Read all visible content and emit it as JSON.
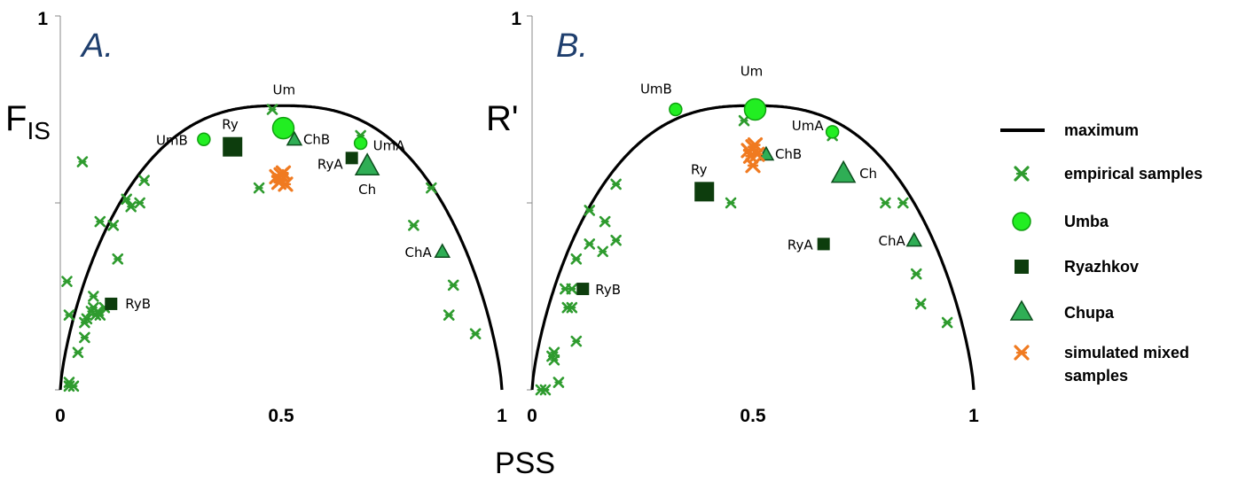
{
  "colors": {
    "empirical": "#2e9b2e",
    "umba_fill": "#22ee22",
    "umba_stroke": "#10a010",
    "ryazhkov": "#0d3d0d",
    "chupa_fill": "#2fae55",
    "chupa_stroke": "#0d4d1d",
    "simulated": "#f07a20",
    "maximum": "#000000",
    "panel_label": "#1f3f6e"
  },
  "x_axis_label": "PSS",
  "legend": {
    "maximum": "maximum",
    "empirical": "empirical samples",
    "umba": "Umba",
    "ryazhkov": "Ryazhkov",
    "chupa": "Chupa",
    "simulated": [
      "simulated mixed",
      "samples"
    ]
  },
  "chart_data": [
    {
      "type": "scatter",
      "panel_label": "A.",
      "ylabel": "F",
      "ylabel_sub": "IS",
      "xlim": [
        0,
        1
      ],
      "ylim": [
        0,
        1
      ],
      "x_ticks": [
        "0",
        "0.5",
        "1"
      ],
      "y_tick_label_top": "1",
      "curve": "maximum",
      "series": [
        {
          "key": "empirical",
          "name": "empirical samples",
          "marker": "x",
          "points": [
            [
              0.02,
              0.01
            ],
            [
              0.03,
              0.01
            ],
            [
              0.02,
              0.02
            ],
            [
              0.04,
              0.1
            ],
            [
              0.055,
              0.14
            ],
            [
              0.055,
              0.18
            ],
            [
              0.02,
              0.2
            ],
            [
              0.06,
              0.19
            ],
            [
              0.07,
              0.21
            ],
            [
              0.075,
              0.22
            ],
            [
              0.08,
              0.2
            ],
            [
              0.085,
              0.21
            ],
            [
              0.09,
              0.2
            ],
            [
              0.1,
              0.22
            ],
            [
              0.075,
              0.25
            ],
            [
              0.015,
              0.29
            ],
            [
              0.13,
              0.35
            ],
            [
              0.12,
              0.44
            ],
            [
              0.09,
              0.45
            ],
            [
              0.16,
              0.49
            ],
            [
              0.18,
              0.5
            ],
            [
              0.15,
              0.51
            ],
            [
              0.19,
              0.56
            ],
            [
              0.05,
              0.61
            ],
            [
              0.45,
              0.54
            ],
            [
              0.48,
              0.75
            ],
            [
              0.68,
              0.68
            ],
            [
              0.84,
              0.54
            ],
            [
              0.8,
              0.44
            ],
            [
              0.89,
              0.28
            ],
            [
              0.88,
              0.2
            ],
            [
              0.94,
              0.15
            ]
          ]
        },
        {
          "key": "umba",
          "name": "Umba",
          "marker": "circle",
          "points": [
            {
              "x": 0.325,
              "y": 0.67,
              "label": "UmB",
              "size": "small",
              "ldx": -18,
              "ldy": 6,
              "anchor": "end"
            },
            {
              "x": 0.505,
              "y": 0.7,
              "label": "Um",
              "size": "large",
              "ldx": -12,
              "ldy": -38,
              "anchor": "start"
            },
            {
              "x": 0.68,
              "y": 0.66,
              "label": "UmA",
              "size": "small",
              "ldx": 14,
              "ldy": 8,
              "anchor": "start"
            }
          ]
        },
        {
          "key": "ryazhkov",
          "name": "Ryazhkov",
          "marker": "square",
          "points": [
            {
              "x": 0.39,
              "y": 0.65,
              "label": "Ry",
              "size": "large",
              "ldx": -12,
              "ldy": -20,
              "anchor": "start"
            },
            {
              "x": 0.66,
              "y": 0.62,
              "label": "RyA",
              "size": "small",
              "ldx": -10,
              "ldy": 12,
              "anchor": "end"
            },
            {
              "x": 0.115,
              "y": 0.23,
              "label": "RyB",
              "size": "small",
              "ldx": 16,
              "ldy": 5,
              "anchor": "start"
            }
          ]
        },
        {
          "key": "chupa",
          "name": "Chupa",
          "marker": "triangle",
          "points": [
            {
              "x": 0.53,
              "y": 0.67,
              "label": "ChB",
              "size": "small",
              "ldx": 10,
              "ldy": 5,
              "anchor": "start"
            },
            {
              "x": 0.695,
              "y": 0.6,
              "label": "Ch",
              "size": "large",
              "ldx": -10,
              "ldy": 32,
              "anchor": "start"
            },
            {
              "x": 0.865,
              "y": 0.37,
              "label": "ChA",
              "size": "small",
              "ldx": -12,
              "ldy": 6,
              "anchor": "end"
            }
          ]
        },
        {
          "key": "simulated",
          "name": "simulated mixed samples",
          "marker": "x",
          "points": [
            [
              0.49,
              0.57
            ],
            [
              0.5,
              0.56
            ],
            [
              0.505,
              0.58
            ],
            [
              0.51,
              0.55
            ],
            [
              0.495,
              0.555
            ],
            [
              0.5,
              0.575
            ]
          ]
        }
      ]
    },
    {
      "type": "scatter",
      "panel_label": "B.",
      "ylabel": "R'",
      "ylabel_sub": "",
      "xlim": [
        0,
        1
      ],
      "ylim": [
        0,
        1
      ],
      "x_ticks": [
        "0",
        "0.5",
        "1"
      ],
      "y_tick_label_top": "1",
      "curve": "maximum",
      "series": [
        {
          "key": "empirical",
          "name": "empirical samples",
          "marker": "x",
          "points": [
            [
              0.02,
              0.0
            ],
            [
              0.03,
              0.0
            ],
            [
              0.06,
              0.02
            ],
            [
              0.05,
              0.08
            ],
            [
              0.05,
              0.1
            ],
            [
              0.045,
              0.09
            ],
            [
              0.1,
              0.13
            ],
            [
              0.08,
              0.22
            ],
            [
              0.09,
              0.22
            ],
            [
              0.09,
              0.27
            ],
            [
              0.075,
              0.27
            ],
            [
              0.1,
              0.35
            ],
            [
              0.13,
              0.39
            ],
            [
              0.16,
              0.37
            ],
            [
              0.13,
              0.48
            ],
            [
              0.165,
              0.45
            ],
            [
              0.19,
              0.4
            ],
            [
              0.19,
              0.55
            ],
            [
              0.45,
              0.5
            ],
            [
              0.48,
              0.72
            ],
            [
              0.68,
              0.68
            ],
            [
              0.8,
              0.5
            ],
            [
              0.84,
              0.5
            ],
            [
              0.87,
              0.31
            ],
            [
              0.88,
              0.23
            ],
            [
              0.94,
              0.18
            ]
          ]
        },
        {
          "key": "umba",
          "name": "Umba",
          "marker": "circle",
          "points": [
            {
              "x": 0.325,
              "y": 0.75,
              "label": "UmB",
              "size": "small",
              "ldx": -4,
              "ldy": -18,
              "anchor": "end"
            },
            {
              "x": 0.505,
              "y": 0.75,
              "label": "Um",
              "size": "large",
              "ldx": -4,
              "ldy": -38,
              "anchor": "middle"
            },
            {
              "x": 0.68,
              "y": 0.69,
              "label": "UmA",
              "size": "small",
              "ldx": -10,
              "ldy": -2,
              "anchor": "end"
            }
          ]
        },
        {
          "key": "ryazhkov",
          "name": "Ryazhkov",
          "marker": "square",
          "points": [
            {
              "x": 0.39,
              "y": 0.53,
              "label": "Ry",
              "size": "large",
              "ldx": -6,
              "ldy": -20,
              "anchor": "middle"
            },
            {
              "x": 0.66,
              "y": 0.39,
              "label": "RyA",
              "size": "small",
              "ldx": -12,
              "ldy": 6,
              "anchor": "end"
            },
            {
              "x": 0.115,
              "y": 0.27,
              "label": "RyB",
              "size": "small",
              "ldx": 14,
              "ldy": 6,
              "anchor": "start"
            }
          ]
        },
        {
          "key": "chupa",
          "name": "Chupa",
          "marker": "triangle",
          "points": [
            {
              "x": 0.53,
              "y": 0.63,
              "label": "ChB",
              "size": "small",
              "ldx": 10,
              "ldy": 5,
              "anchor": "start"
            },
            {
              "x": 0.705,
              "y": 0.58,
              "label": "Ch",
              "size": "large",
              "ldx": 18,
              "ldy": 6,
              "anchor": "start"
            },
            {
              "x": 0.865,
              "y": 0.4,
              "label": "ChA",
              "size": "small",
              "ldx": -10,
              "ldy": 6,
              "anchor": "end"
            }
          ]
        },
        {
          "key": "simulated",
          "name": "simulated mixed samples",
          "marker": "x",
          "points": [
            [
              0.49,
              0.64
            ],
            [
              0.5,
              0.65
            ],
            [
              0.51,
              0.63
            ],
            [
              0.505,
              0.655
            ],
            [
              0.495,
              0.625
            ],
            [
              0.5,
              0.6
            ]
          ]
        }
      ]
    }
  ]
}
